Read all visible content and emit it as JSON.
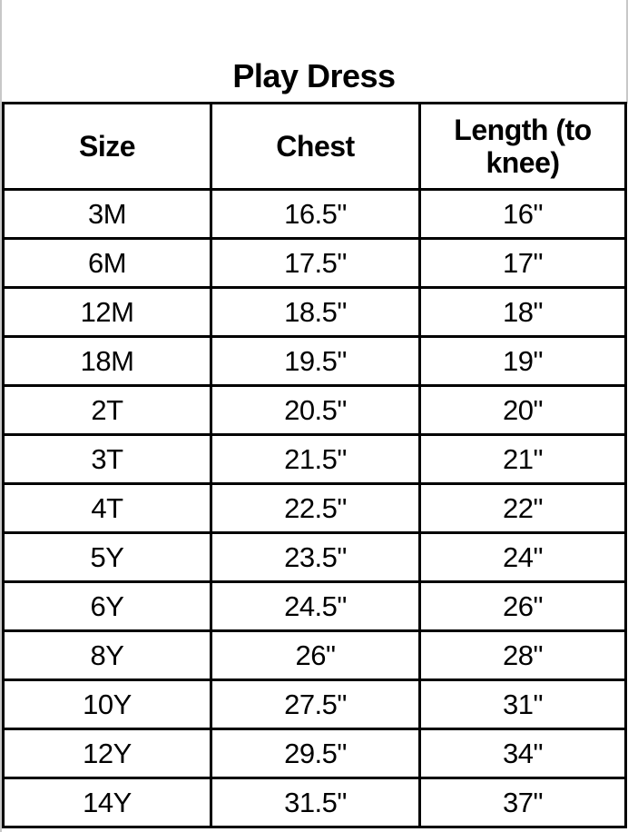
{
  "title": "Play Dress",
  "headers": [
    "Size",
    "Chest",
    "Length (to knee)"
  ],
  "rows": [
    [
      "3M",
      "16.5\"",
      "16\""
    ],
    [
      "6M",
      "17.5\"",
      "17\""
    ],
    [
      "12M",
      "18.5\"",
      "18\""
    ],
    [
      "18M",
      "19.5\"",
      "19\""
    ],
    [
      "2T",
      "20.5\"",
      "20\""
    ],
    [
      "3T",
      "21.5\"",
      "21\""
    ],
    [
      "4T",
      "22.5\"",
      "22\""
    ],
    [
      "5Y",
      "23.5\"",
      "24\""
    ],
    [
      "6Y",
      "24.5\"",
      "26\""
    ],
    [
      "8Y",
      "26\"",
      "28\""
    ],
    [
      "10Y",
      "27.5\"",
      "31\""
    ],
    [
      "12Y",
      "29.5\"",
      "34\""
    ],
    [
      "14Y",
      "31.5\"",
      "37\""
    ]
  ]
}
